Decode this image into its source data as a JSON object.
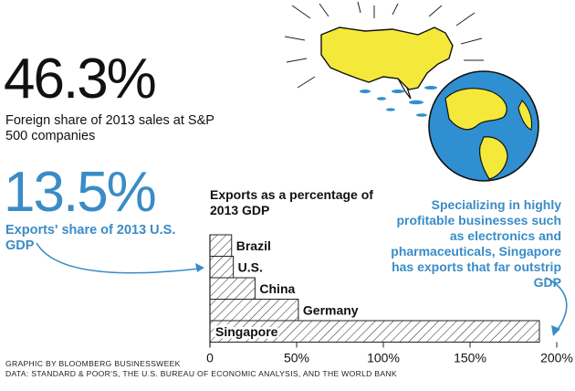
{
  "stats": [
    {
      "value": "46.3%",
      "caption": "Foreign share of 2013 sales at S&P 500 companies"
    },
    {
      "value": "13.5%",
      "caption": "Exports' share of 2013 U.S. GDP"
    }
  ],
  "annotation": "Specializing in highly profitable businesses such as electronics and pharmaceuticals, Singapore has exports that far outstrip GDP",
  "credit": [
    "GRAPHIC BY BLOOMBERG BUSINESSWEEK",
    "DATA: STANDARD & POOR'S, THE U.S. BUREAU OF ECONOMIC ANALYSIS, AND THE WORLD BANK"
  ],
  "colors": {
    "accent": "#3a8cc6",
    "map_land": "#f4e93a",
    "ocean": "#2f8fd0"
  },
  "icons": [
    "united-states-map-icon",
    "globe-icon"
  ],
  "chart_data": {
    "type": "bar",
    "orientation": "horizontal",
    "title": "Exports as a percentage of 2013 GDP",
    "categories": [
      "Brazil",
      "U.S.",
      "China",
      "Germany",
      "Singapore"
    ],
    "values": [
      12.5,
      13.5,
      26,
      51,
      190
    ],
    "xlim": [
      0,
      200
    ],
    "xticks": [
      0,
      50,
      100,
      150,
      200
    ],
    "xtick_labels": [
      "0",
      "50%",
      "100%",
      "150%",
      "200%"
    ],
    "fill": "hatched",
    "grid": false,
    "legend": "none"
  }
}
